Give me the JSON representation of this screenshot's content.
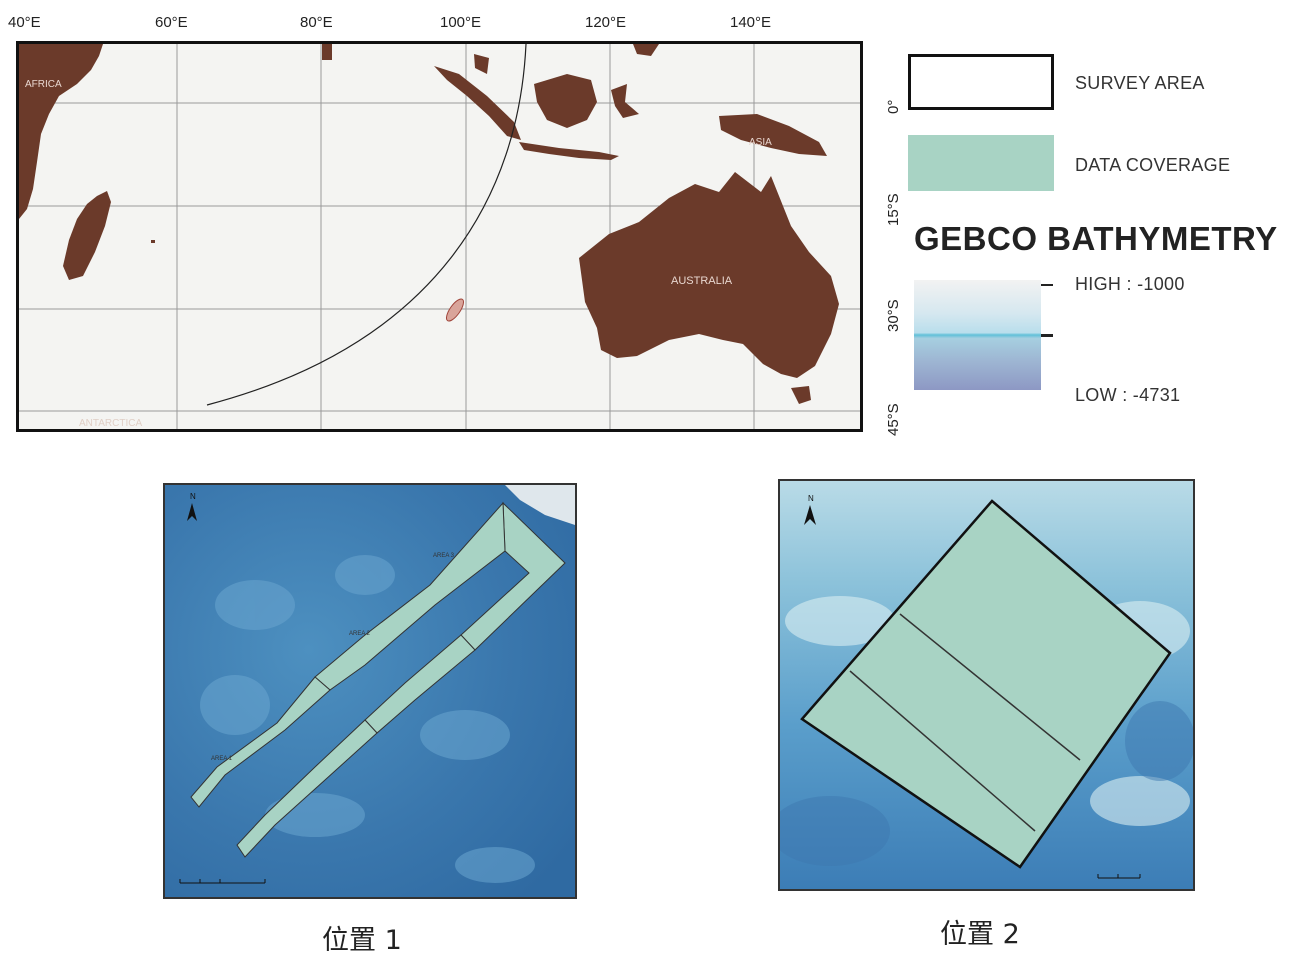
{
  "world_map": {
    "longitude_labels": [
      "40°E",
      "60°E",
      "80°E",
      "100°E",
      "120°E",
      "140°E"
    ],
    "latitude_labels": [
      "0°",
      "15°S",
      "30°S",
      "45°S"
    ],
    "place_labels": {
      "africa": "AFRICA",
      "asia": "ASIA",
      "australia": "AUSTRALIA",
      "antarctica": "ANTARCTICA"
    }
  },
  "legend": {
    "survey_area": "SURVEY AREA",
    "data_coverage": "DATA COVERAGE",
    "bathymetry_title": "GEBCO BATHYMETRY",
    "high": "HIGH : -1000",
    "low": "LOW : -4731",
    "coverage_color": "#a8d3c4",
    "land_color": "#6b3a2a"
  },
  "inset1": {
    "area_labels": [
      "AREA 1",
      "AREA 2",
      "AREA 3"
    ],
    "north": "N",
    "caption": "位置 1"
  },
  "inset2": {
    "north": "N",
    "caption": "位置 2"
  }
}
